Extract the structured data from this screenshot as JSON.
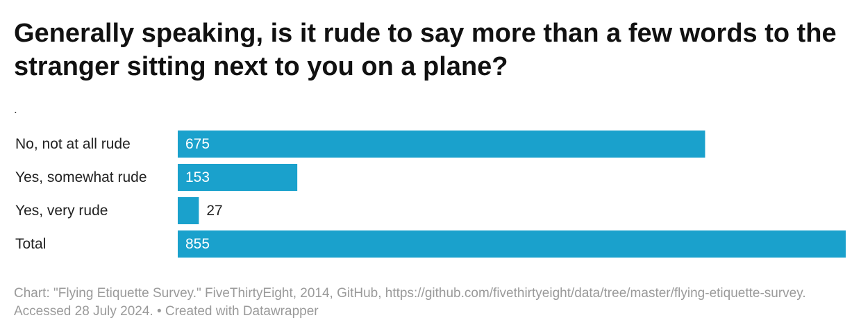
{
  "chart_data": {
    "type": "bar",
    "orientation": "horizontal",
    "title": "Generally speaking, is it rude to say more than a few words to the stranger sitting next to you on a plane?",
    "subtitle": ".",
    "categories": [
      "No, not at all rude",
      "Yes, somewhat rude",
      "Yes, very rude",
      "Total"
    ],
    "values": [
      675,
      153,
      27,
      855
    ],
    "xlim": [
      0,
      855
    ],
    "grid": false,
    "legend": "none",
    "bar_color": "#1aa1cc",
    "value_labels": [
      "675",
      "153",
      "27",
      "855"
    ]
  },
  "footer": {
    "text": "Chart: \"Flying Etiquette Survey.\" FiveThirtyEight, 2014, GitHub, https://github.com/fivethirtyeight/data/tree/master/flying-etiquette-survey. Accessed 28 July 2024. • Created with Datawrapper"
  }
}
